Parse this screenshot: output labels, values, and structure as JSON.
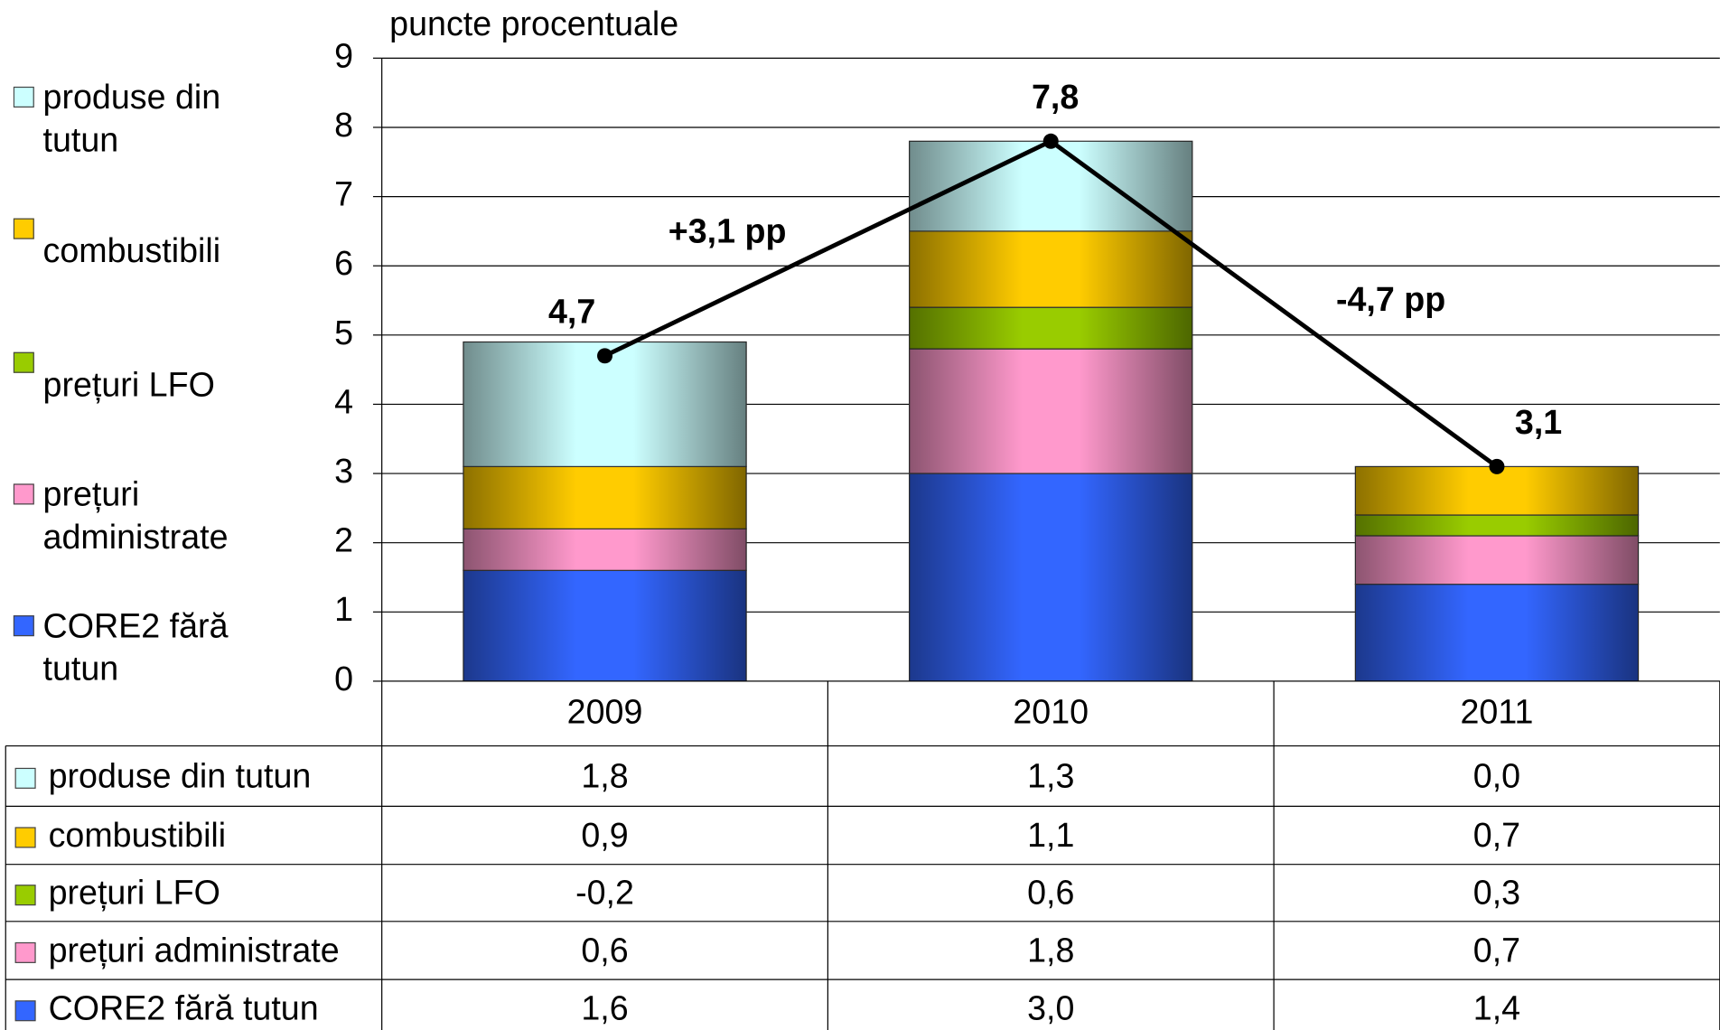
{
  "chart_data": {
    "type": "bar",
    "stacked": true,
    "y_label": "puncte procentuale",
    "categories": [
      "2009",
      "2010",
      "2011"
    ],
    "series": [
      {
        "name": "CORE2 fără tutun",
        "color": "#3366ff",
        "values": [
          1.6,
          3.0,
          1.4
        ],
        "value_labels": [
          "1,6",
          "3,0",
          "1,4"
        ]
      },
      {
        "name": "prețuri administrate",
        "color": "#ff99cc",
        "values": [
          0.6,
          1.8,
          0.7
        ],
        "value_labels": [
          "0,6",
          "1,8",
          "0,7"
        ]
      },
      {
        "name": "prețuri LFO",
        "color": "#99cc00",
        "values": [
          -0.2,
          0.6,
          0.3
        ],
        "value_labels": [
          "-0,2",
          "0,6",
          "0,3"
        ]
      },
      {
        "name": "combustibili",
        "color": "#ffcc00",
        "values": [
          0.9,
          1.1,
          0.7
        ],
        "value_labels": [
          "0,9",
          "1,1",
          "0,7"
        ]
      },
      {
        "name": "produse din tutun",
        "color": "#ccffff",
        "values": [
          1.8,
          1.3,
          0.0
        ],
        "value_labels": [
          "1,8",
          "1,3",
          "0,0"
        ]
      }
    ],
    "totals": [
      4.7,
      7.8,
      3.1
    ],
    "total_labels": [
      "4,7",
      "7,8",
      "3,1"
    ],
    "annotations": [
      "+3,1 pp",
      "-4,7 pp"
    ],
    "ylim": [
      0,
      9
    ],
    "yticks": [
      0,
      1,
      2,
      3,
      4,
      5,
      6,
      7,
      8,
      9
    ],
    "grid": true
  }
}
